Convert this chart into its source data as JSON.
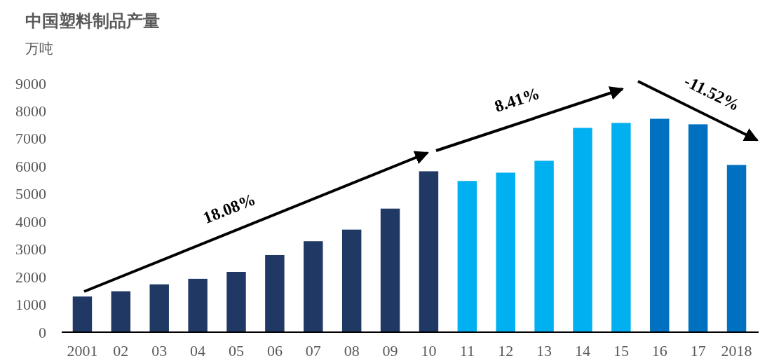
{
  "chart_data": {
    "type": "bar",
    "title": "中国塑料制品产量",
    "ylabel": "万吨",
    "categories": [
      "2001",
      "02",
      "03",
      "04",
      "05",
      "06",
      "07",
      "08",
      "09",
      "10",
      "11",
      "12",
      "13",
      "14",
      "15",
      "16",
      "17",
      "2018"
    ],
    "values": [
      1290,
      1480,
      1730,
      1930,
      2180,
      2790,
      3290,
      3710,
      4470,
      5820,
      5470,
      5770,
      6200,
      7390,
      7570,
      7720,
      7520,
      6050
    ],
    "colors": [
      "#203864",
      "#203864",
      "#203864",
      "#203864",
      "#203864",
      "#203864",
      "#203864",
      "#203864",
      "#203864",
      "#203864",
      "#00b0f0",
      "#00b0f0",
      "#00b0f0",
      "#00b0f0",
      "#00b0f0",
      "#0070c0",
      "#0070c0",
      "#0070c0"
    ],
    "ylim": [
      0,
      9000
    ],
    "yticks": [
      0,
      1000,
      2000,
      3000,
      4000,
      5000,
      6000,
      7000,
      8000,
      9000
    ],
    "grid": false,
    "annotations": [
      "18.08%",
      "8.41%",
      "-11.52%"
    ]
  }
}
